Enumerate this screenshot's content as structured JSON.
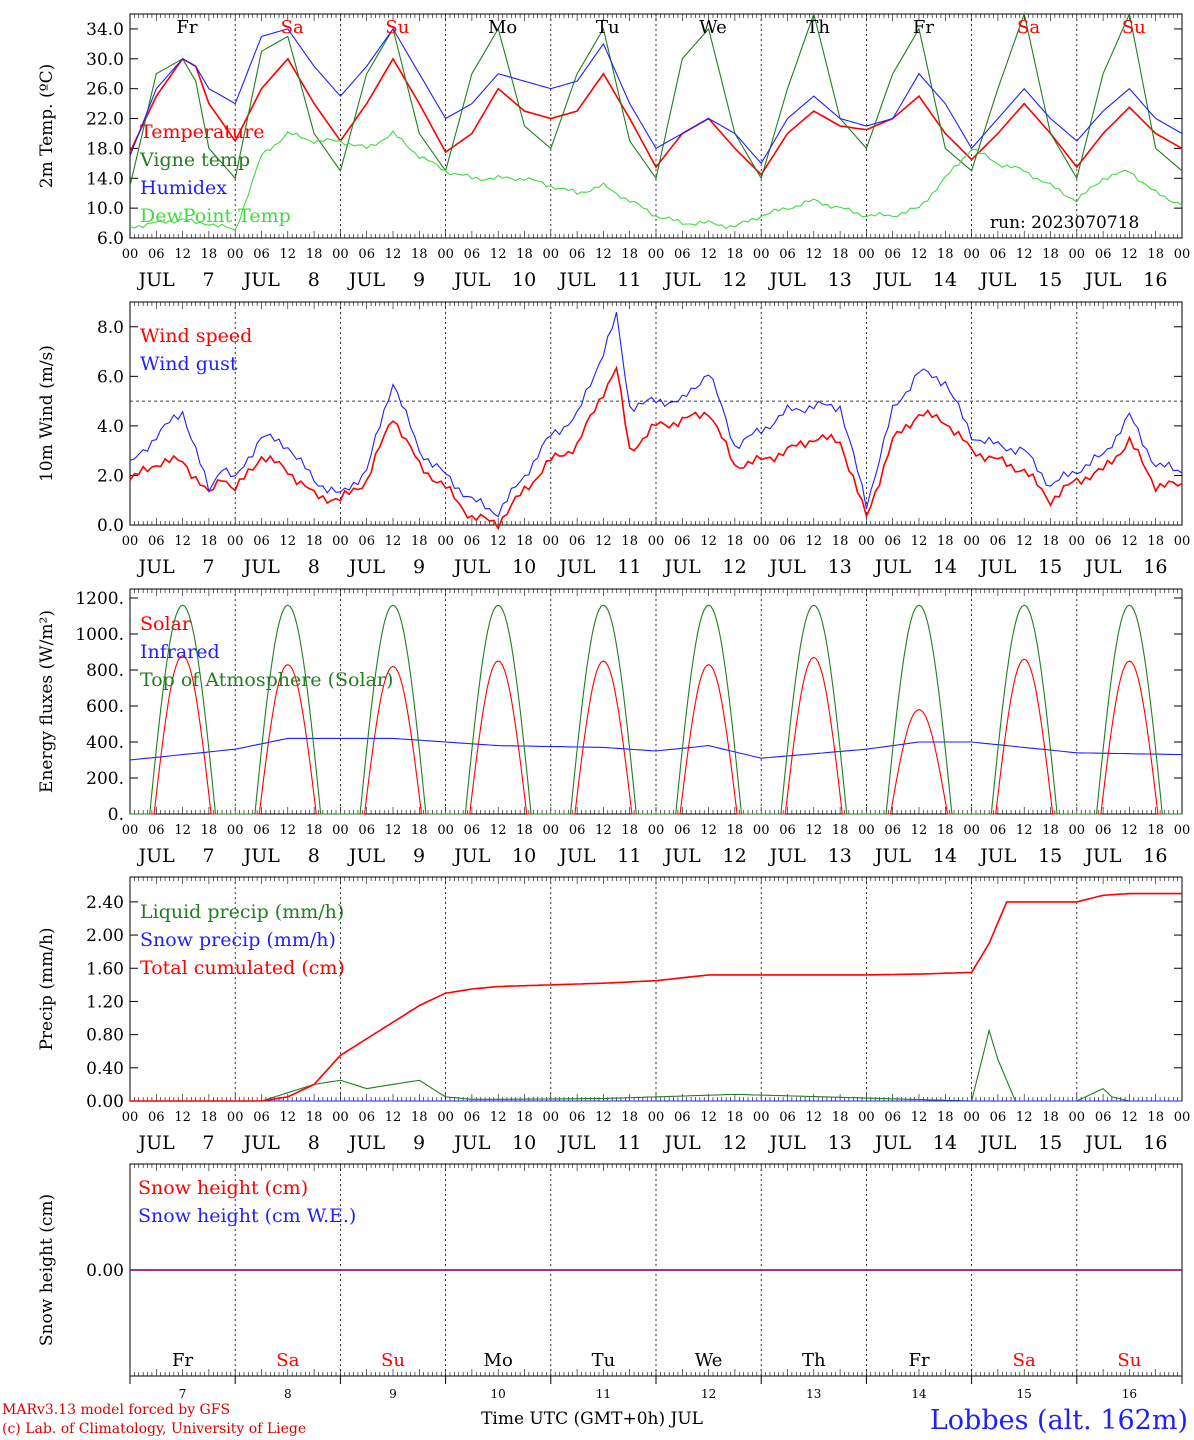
{
  "run_label": "run: 2023070718",
  "credits": {
    "line1": "MARv3.13 model forced by GFS",
    "line2": "(c) Lab. of Climatology, University of Liege"
  },
  "station": "Lobbes (alt. 162m)",
  "time_axis_title": "Time UTC (GMT+0h) JUL",
  "colors": {
    "red": "#ff0000",
    "darkgreen": "#1f7f1f",
    "blue": "#1f1fff",
    "lightgreen": "#3ddc3d",
    "purple": "#8a1a8a",
    "credit": "#dd0000"
  },
  "days": [
    {
      "month": "JUL",
      "num": "7",
      "wd": "Fr",
      "weekend": false
    },
    {
      "month": "JUL",
      "num": "8",
      "wd": "Sa",
      "weekend": true
    },
    {
      "month": "JUL",
      "num": "9",
      "wd": "Su",
      "weekend": true
    },
    {
      "month": "JUL",
      "num": "10",
      "wd": "Mo",
      "weekend": false
    },
    {
      "month": "JUL",
      "num": "11",
      "wd": "Tu",
      "weekend": false
    },
    {
      "month": "JUL",
      "num": "12",
      "wd": "We",
      "weekend": false
    },
    {
      "month": "JUL",
      "num": "13",
      "wd": "Th",
      "weekend": false
    },
    {
      "month": "JUL",
      "num": "14",
      "wd": "Fr",
      "weekend": false
    },
    {
      "month": "JUL",
      "num": "15",
      "wd": "Sa",
      "weekend": true
    },
    {
      "month": "JUL",
      "num": "16",
      "wd": "Su",
      "weekend": true
    }
  ],
  "hour_labels": [
    "00",
    "06",
    "12",
    "18"
  ],
  "chart_data": [
    {
      "id": "temp",
      "type": "line",
      "ylabel": "2m Temp. (ºC)",
      "ylim": [
        6,
        36
      ],
      "yticks": [
        "6.0",
        "10.0",
        "14.0",
        "18.0",
        "22.0",
        "26.0",
        "30.0",
        "34.0"
      ],
      "ytick_values": [
        6,
        10,
        14,
        18,
        22,
        26,
        30,
        34
      ],
      "x_unit": "hours from JUL 7 00 UTC",
      "series": [
        {
          "name": "Temperature",
          "color": "red",
          "x": [
            0,
            6,
            12,
            15,
            18,
            24,
            30,
            36,
            42,
            48,
            54,
            60,
            66,
            72,
            78,
            84,
            90,
            96,
            102,
            108,
            114,
            120,
            126,
            132,
            138,
            144,
            150,
            156,
            162,
            168,
            174,
            180,
            186,
            192,
            198,
            204,
            210,
            216,
            222,
            228,
            234,
            240
          ],
          "y": [
            17.5,
            25,
            30,
            29,
            24,
            19,
            26,
            30,
            24,
            19,
            24,
            30,
            24,
            17.5,
            20,
            26,
            23,
            22,
            23,
            28,
            22,
            15.5,
            20,
            22,
            18,
            14.5,
            20,
            23,
            21,
            20.5,
            22,
            25,
            20,
            16.5,
            20,
            24,
            20,
            15.5,
            20,
            23.5,
            20,
            18
          ]
        },
        {
          "name": "Vigne temp",
          "color": "darkgreen",
          "x": [
            0,
            6,
            12,
            15,
            18,
            24,
            30,
            36,
            42,
            48,
            54,
            60,
            66,
            72,
            78,
            84,
            90,
            96,
            102,
            108,
            114,
            120,
            126,
            132,
            138,
            144,
            150,
            156,
            162,
            168,
            174,
            180,
            186,
            192,
            198,
            204,
            210,
            216,
            222,
            228,
            234,
            240
          ],
          "y": [
            13,
            28,
            30,
            27,
            18,
            14,
            31,
            33,
            20,
            15,
            28,
            34,
            20,
            15,
            28,
            34,
            21,
            18,
            28,
            34,
            19,
            14,
            30,
            34,
            20,
            14,
            26,
            36,
            22,
            18,
            28,
            34,
            18,
            15,
            26,
            36,
            20,
            14,
            28,
            36,
            18,
            15
          ]
        },
        {
          "name": "Humidex",
          "color": "blue",
          "x": [
            0,
            6,
            12,
            15,
            18,
            24,
            30,
            36,
            42,
            48,
            54,
            60,
            66,
            72,
            78,
            84,
            90,
            96,
            102,
            108,
            114,
            120,
            126,
            132,
            138,
            144,
            150,
            156,
            162,
            168,
            174,
            180,
            186,
            192,
            198,
            204,
            210,
            216,
            222,
            228,
            234,
            240
          ],
          "y": [
            17,
            26,
            30,
            29,
            26,
            24,
            33,
            34,
            29,
            25,
            29,
            34,
            28,
            22,
            24,
            28,
            27,
            26,
            27,
            32,
            24,
            18,
            20,
            22,
            20,
            16,
            22,
            25,
            22,
            21,
            22,
            28,
            24,
            18,
            22,
            26,
            22,
            19,
            23,
            26,
            22,
            20
          ]
        },
        {
          "name": "DewPoint Temp",
          "color": "lightgreen",
          "x": [
            0,
            6,
            12,
            15,
            18,
            24,
            30,
            36,
            42,
            48,
            54,
            60,
            66,
            72,
            78,
            84,
            90,
            96,
            102,
            108,
            114,
            120,
            126,
            132,
            138,
            144,
            150,
            156,
            162,
            168,
            174,
            180,
            186,
            192,
            198,
            204,
            210,
            216,
            222,
            228,
            234,
            240
          ],
          "y": [
            7.5,
            8,
            8.5,
            8,
            8,
            7,
            17,
            20,
            19,
            19,
            18,
            20,
            17,
            15,
            14,
            14,
            14,
            13,
            12,
            13,
            11,
            9,
            8,
            8,
            7.5,
            9,
            10,
            11,
            10,
            9,
            9,
            10,
            14,
            18,
            16,
            15,
            13,
            11,
            14,
            15,
            12,
            10.5
          ]
        }
      ]
    },
    {
      "id": "wind",
      "type": "line",
      "ylabel": "10m Wind (m/s)",
      "ylim": [
        0,
        9
      ],
      "yticks": [
        "0.0",
        "2.0",
        "4.0",
        "6.0",
        "8.0"
      ],
      "ytick_values": [
        0,
        2,
        4,
        6,
        8
      ],
      "reference_line": 5,
      "x_unit": "hours from JUL 7 00 UTC",
      "series": [
        {
          "name": "Wind speed",
          "color": "red",
          "x": [
            0,
            6,
            12,
            18,
            21,
            24,
            30,
            36,
            42,
            48,
            54,
            60,
            66,
            72,
            78,
            84,
            90,
            96,
            102,
            108,
            111,
            114,
            120,
            126,
            132,
            138,
            144,
            150,
            156,
            162,
            168,
            174,
            180,
            186,
            192,
            198,
            204,
            210,
            216,
            222,
            228,
            234,
            240
          ],
          "y": [
            1.8,
            2.5,
            2.6,
            1.2,
            2,
            1.4,
            2.8,
            2.2,
            1.2,
            1.0,
            1.8,
            4.4,
            2.4,
            1.5,
            0.3,
            0.1,
            1.4,
            2.6,
            3.2,
            5.4,
            6.3,
            3.0,
            4.0,
            4.2,
            4.6,
            2.4,
            2.6,
            3.0,
            3.5,
            3.4,
            0.3,
            3.4,
            4.5,
            4.2,
            3.0,
            2.6,
            2.2,
            1.0,
            1.8,
            2.2,
            3.4,
            1.6,
            1.6
          ]
        },
        {
          "name": "Wind gust",
          "color": "blue",
          "x": [
            0,
            6,
            12,
            18,
            21,
            24,
            30,
            36,
            42,
            48,
            54,
            60,
            66,
            72,
            78,
            84,
            90,
            96,
            102,
            108,
            111,
            114,
            120,
            126,
            132,
            138,
            144,
            150,
            156,
            162,
            168,
            174,
            180,
            186,
            192,
            198,
            204,
            210,
            216,
            222,
            228,
            234,
            240
          ],
          "y": [
            2.4,
            3.6,
            4.6,
            1.4,
            2.4,
            1.8,
            3.6,
            3.2,
            1.8,
            1.2,
            2.2,
            5.8,
            3.0,
            2.0,
            1.0,
            0.5,
            2.0,
            3.6,
            4.4,
            7.0,
            8.4,
            4.8,
            5.0,
            5.0,
            6.2,
            3.2,
            3.8,
            4.6,
            4.8,
            4.8,
            0.8,
            4.6,
            6.2,
            5.8,
            3.6,
            3.2,
            3.0,
            1.6,
            2.2,
            2.8,
            4.4,
            2.4,
            2.2
          ]
        }
      ]
    },
    {
      "id": "energy",
      "type": "line",
      "ylabel": "Energy fluxes (W/m²)",
      "ylim": [
        0,
        1250
      ],
      "yticks": [
        "0.",
        "200.",
        "400.",
        "600.",
        "800.",
        "1000.",
        "1200."
      ],
      "ytick_values": [
        0,
        200,
        400,
        600,
        800,
        1000,
        1200
      ],
      "x_unit": "hours from JUL 7 00 UTC",
      "series": [
        {
          "name": "Solar",
          "color": "red",
          "daily_peak_W_m2": [
            880,
            830,
            820,
            850,
            850,
            830,
            870,
            580,
            860,
            850
          ]
        },
        {
          "name": "Infrared",
          "color": "blue",
          "x": [
            0,
            24,
            36,
            60,
            84,
            108,
            120,
            132,
            144,
            168,
            180,
            192,
            216,
            240
          ],
          "y": [
            300,
            360,
            420,
            420,
            380,
            370,
            350,
            380,
            310,
            360,
            400,
            400,
            340,
            330
          ]
        },
        {
          "name": "Top of Atmosphere (Solar)",
          "color": "darkgreen",
          "daily_peak_W_m2": [
            1160,
            1160,
            1160,
            1160,
            1160,
            1160,
            1160,
            1160,
            1160,
            1160
          ]
        }
      ]
    },
    {
      "id": "precip",
      "type": "line",
      "ylabel": "Precip (mm/h)",
      "ylim": [
        0,
        2.7
      ],
      "yticks": [
        "0.00",
        "0.40",
        "0.80",
        "1.20",
        "1.60",
        "2.00",
        "2.40"
      ],
      "ytick_values": [
        0,
        0.4,
        0.8,
        1.2,
        1.6,
        2.0,
        2.4
      ],
      "x_unit": "hours from JUL 7 00 UTC",
      "series": [
        {
          "name": "Liquid precip (mm/h)",
          "color": "darkgreen",
          "x": [
            0,
            30,
            36,
            42,
            48,
            54,
            60,
            66,
            72,
            78,
            84,
            108,
            138,
            192,
            196,
            198,
            202,
            204,
            216,
            222,
            224,
            228,
            240
          ],
          "y": [
            0,
            0,
            0.1,
            0.2,
            0.25,
            0.15,
            0.2,
            0.25,
            0.05,
            0.02,
            0.02,
            0.03,
            0.08,
            0,
            0.85,
            0.5,
            0,
            0,
            0,
            0.15,
            0.05,
            0,
            0
          ]
        },
        {
          "name": "Snow precip (mm/h)",
          "color": "blue",
          "x": [
            0,
            240
          ],
          "y": [
            0,
            0
          ]
        },
        {
          "name": "Total cumulated (cm)",
          "color": "red",
          "x": [
            0,
            30,
            36,
            42,
            48,
            54,
            60,
            66,
            72,
            78,
            84,
            96,
            108,
            120,
            132,
            144,
            156,
            168,
            180,
            192,
            196,
            200,
            204,
            216,
            222,
            228,
            240
          ],
          "y": [
            0,
            0,
            0.05,
            0.2,
            0.55,
            0.75,
            0.95,
            1.15,
            1.3,
            1.35,
            1.38,
            1.4,
            1.42,
            1.45,
            1.52,
            1.52,
            1.52,
            1.52,
            1.53,
            1.55,
            1.9,
            2.4,
            2.4,
            2.4,
            2.48,
            2.5,
            2.5
          ]
        }
      ]
    },
    {
      "id": "snow",
      "type": "line",
      "ylabel": "Snow height (cm)",
      "ylim": [
        -1,
        1
      ],
      "yticks": [
        "0.00"
      ],
      "ytick_values": [
        0
      ],
      "x_unit": "hours from JUL 7 00 UTC",
      "series": [
        {
          "name": "Snow height (cm)",
          "color": "red",
          "x": [
            0,
            240
          ],
          "y": [
            0,
            0
          ]
        },
        {
          "name": "Snow height (cm W.E.)",
          "color": "blue",
          "x": [
            0,
            240
          ],
          "y": [
            0,
            0
          ]
        }
      ]
    }
  ]
}
